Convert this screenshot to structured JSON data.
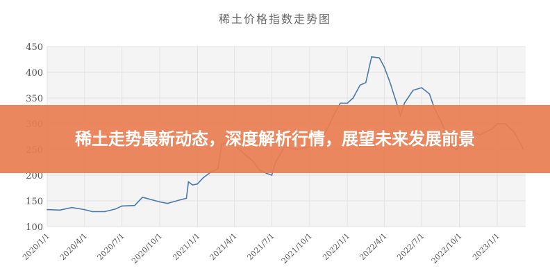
{
  "chart_data": {
    "type": "line",
    "title": "稀土价格指数走势图",
    "xlabel": "",
    "ylabel": "",
    "ylim": [
      100,
      450
    ],
    "yticks": [
      100,
      150,
      200,
      250,
      300,
      350,
      400,
      450
    ],
    "xticks": [
      "2020/1/1",
      "2020/4/1",
      "2020/7/1",
      "2020/10/1",
      "2021/1/1",
      "2021/4/1",
      "2021/7/1",
      "2021/10/1",
      "2022/1/1",
      "2022/4/1",
      "2022/7/1",
      "2022/10/1",
      "2023/1/1"
    ],
    "grid": true,
    "line_color": "#4a78b0",
    "series": [
      {
        "x": [
          "2020/1/1",
          "2020/2/1",
          "2020/3/1",
          "2020/4/1",
          "2020/4/20",
          "2020/5/20",
          "2020/6/15",
          "2020/7/1",
          "2020/8/1",
          "2020/8/20",
          "2020/10/1",
          "2020/10/20",
          "2020/11/20",
          "2020/12/5",
          "2020/12/10",
          "2020/12/20",
          "2021/1/1",
          "2021/1/15",
          "2021/2/1",
          "2021/2/20",
          "2021/3/1",
          "2021/3/10",
          "2021/4/1",
          "2021/4/20",
          "2021/5/15",
          "2021/6/1",
          "2021/6/20",
          "2021/7/1",
          "2021/7/10",
          "2021/8/1",
          "2021/9/1",
          "2021/10/1",
          "2021/11/1",
          "2021/12/1",
          "2021/12/15",
          "2022/1/1",
          "2022/1/15",
          "2022/2/1",
          "2022/2/15",
          "2022/3/1",
          "2022/3/20",
          "2022/4/1",
          "2022/4/15",
          "2022/5/1",
          "2022/5/10",
          "2022/5/20",
          "2022/6/10",
          "2022/7/1",
          "2022/7/20",
          "2022/8/1",
          "2022/8/20",
          "2022/9/10",
          "2022/9/25",
          "2022/10/10",
          "2022/11/1",
          "2022/11/20",
          "2022/12/1",
          "2022/12/20",
          "2023/1/1",
          "2023/1/20",
          "2023/2/10",
          "2023/3/5"
        ],
        "values": [
          133,
          132,
          137,
          133,
          129,
          129,
          134,
          140,
          141,
          157,
          148,
          145,
          152,
          155,
          187,
          181,
          183,
          195,
          205,
          213,
          260,
          262,
          258,
          245,
          228,
          210,
          203,
          200,
          225,
          255,
          250,
          255,
          270,
          320,
          340,
          340,
          350,
          375,
          380,
          430,
          428,
          410,
          380,
          340,
          315,
          340,
          365,
          370,
          358,
          330,
          300,
          255,
          250,
          270,
          285,
          278,
          283,
          290,
          300,
          300,
          285,
          252
        ]
      }
    ]
  },
  "banner": {
    "text": "稀土走势最新动态，深度解析行情，展望未来发展前景"
  }
}
